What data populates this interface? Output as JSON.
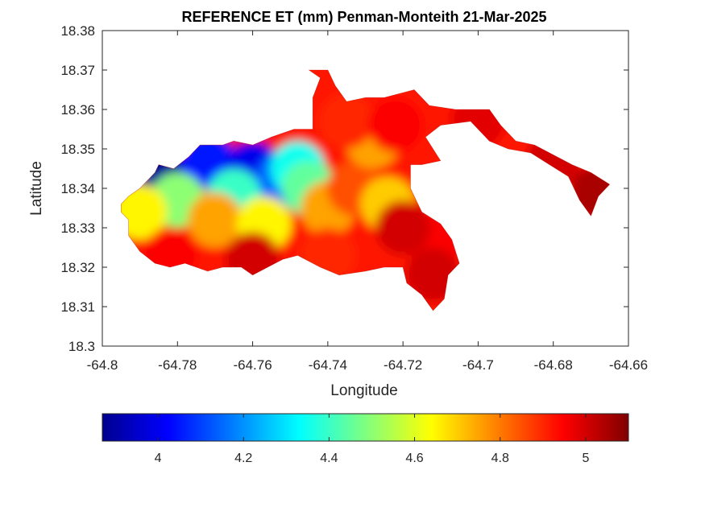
{
  "title": "REFERENCE ET (mm) Penman-Monteith 21-Mar-2025",
  "xlabel": "Longitude",
  "ylabel": "Latitude",
  "x_ticks": [
    "-64.8",
    "-64.78",
    "-64.76",
    "-64.74",
    "-64.72",
    "-64.7",
    "-64.68",
    "-64.66"
  ],
  "y_ticks": [
    "18.3",
    "18.31",
    "18.32",
    "18.33",
    "18.34",
    "18.35",
    "18.36",
    "18.37",
    "18.38"
  ],
  "colorbar_ticks": [
    "4",
    "4.2",
    "4.4",
    "4.6",
    "4.8",
    "5"
  ],
  "chart_data": {
    "type": "heatmap",
    "title": "REFERENCE ET (mm) Penman-Monteith 21-Mar-2025",
    "xlabel": "Longitude",
    "ylabel": "Latitude",
    "xlim": [
      -64.8,
      -64.66
    ],
    "ylim": [
      18.3,
      18.38
    ],
    "colormap": "jet",
    "clim": [
      3.87,
      5.1
    ],
    "colorbar_location": "south",
    "grid": false,
    "island_outline": [
      [
        -64.795,
        18.336
      ],
      [
        -64.793,
        18.338
      ],
      [
        -64.79,
        18.34
      ],
      [
        -64.786,
        18.344
      ],
      [
        -64.785,
        18.346
      ],
      [
        -64.781,
        18.345
      ],
      [
        -64.777,
        18.348
      ],
      [
        -64.774,
        18.351
      ],
      [
        -64.768,
        18.351
      ],
      [
        -64.765,
        18.352
      ],
      [
        -64.76,
        18.351
      ],
      [
        -64.755,
        18.353
      ],
      [
        -64.749,
        18.355
      ],
      [
        -64.744,
        18.355
      ],
      [
        -64.744,
        18.363
      ],
      [
        -64.742,
        18.368
      ],
      [
        -64.745,
        18.37
      ],
      [
        -64.74,
        18.37
      ],
      [
        -64.738,
        18.366
      ],
      [
        -64.735,
        18.362
      ],
      [
        -64.73,
        18.363
      ],
      [
        -64.725,
        18.363
      ],
      [
        -64.717,
        18.365
      ],
      [
        -64.713,
        18.361
      ],
      [
        -64.706,
        18.36
      ],
      [
        -64.697,
        18.36
      ],
      [
        -64.694,
        18.356
      ],
      [
        -64.69,
        18.352
      ],
      [
        -64.685,
        18.351
      ],
      [
        -64.681,
        18.349
      ],
      [
        -64.675,
        18.346
      ],
      [
        -64.67,
        18.344
      ],
      [
        -64.665,
        18.341
      ],
      [
        -64.668,
        18.338
      ],
      [
        -64.67,
        18.333
      ],
      [
        -64.673,
        18.337
      ],
      [
        -64.676,
        18.343
      ],
      [
        -64.681,
        18.346
      ],
      [
        -64.686,
        18.349
      ],
      [
        -64.692,
        18.35
      ],
      [
        -64.697,
        18.352
      ],
      [
        -64.702,
        18.357
      ],
      [
        -64.71,
        18.356
      ],
      [
        -64.714,
        18.353
      ],
      [
        -64.71,
        18.347
      ],
      [
        -64.715,
        18.346
      ],
      [
        -64.718,
        18.346
      ],
      [
        -64.718,
        18.34
      ],
      [
        -64.715,
        18.334
      ],
      [
        -64.71,
        18.331
      ],
      [
        -64.707,
        18.327
      ],
      [
        -64.705,
        18.321
      ],
      [
        -64.708,
        18.318
      ],
      [
        -64.709,
        18.312
      ],
      [
        -64.712,
        18.309
      ],
      [
        -64.715,
        18.313
      ],
      [
        -64.719,
        18.316
      ],
      [
        -64.72,
        18.32
      ],
      [
        -64.725,
        18.32
      ],
      [
        -64.73,
        18.319
      ],
      [
        -64.737,
        18.318
      ],
      [
        -64.742,
        18.32
      ],
      [
        -64.748,
        18.323
      ],
      [
        -64.752,
        18.322
      ],
      [
        -64.756,
        18.32
      ],
      [
        -64.76,
        18.318
      ],
      [
        -64.763,
        18.32
      ],
      [
        -64.768,
        18.32
      ],
      [
        -64.772,
        18.319
      ],
      [
        -64.778,
        18.321
      ],
      [
        -64.782,
        18.32
      ],
      [
        -64.786,
        18.321
      ],
      [
        -64.79,
        18.324
      ],
      [
        -64.793,
        18.328
      ],
      [
        -64.793,
        18.332
      ],
      [
        -64.795,
        18.334
      ]
    ],
    "value_field_samples": [
      {
        "lon": -64.784,
        "lat": 18.343,
        "et": 3.9
      },
      {
        "lon": -64.772,
        "lat": 18.347,
        "et": 4.05
      },
      {
        "lon": -64.76,
        "lat": 18.345,
        "et": 4.0
      },
      {
        "lon": -64.752,
        "lat": 18.342,
        "et": 4.15
      },
      {
        "lon": -64.748,
        "lat": 18.345,
        "et": 4.35
      },
      {
        "lon": -64.745,
        "lat": 18.34,
        "et": 4.45
      },
      {
        "lon": -64.765,
        "lat": 18.338,
        "et": 4.4
      },
      {
        "lon": -64.78,
        "lat": 18.337,
        "et": 4.5
      },
      {
        "lon": -64.79,
        "lat": 18.334,
        "et": 4.65
      },
      {
        "lon": -64.77,
        "lat": 18.332,
        "et": 4.75
      },
      {
        "lon": -64.757,
        "lat": 18.331,
        "et": 4.65
      },
      {
        "lon": -64.74,
        "lat": 18.335,
        "et": 4.75
      },
      {
        "lon": -64.733,
        "lat": 18.34,
        "et": 4.85
      },
      {
        "lon": -64.728,
        "lat": 18.352,
        "et": 4.75
      },
      {
        "lon": -64.735,
        "lat": 18.357,
        "et": 4.9
      },
      {
        "lon": -64.722,
        "lat": 18.356,
        "et": 4.95
      },
      {
        "lon": -64.724,
        "lat": 18.336,
        "et": 4.7
      },
      {
        "lon": -64.712,
        "lat": 18.326,
        "et": 4.95
      },
      {
        "lon": -64.72,
        "lat": 18.33,
        "et": 5.0
      },
      {
        "lon": -64.74,
        "lat": 18.323,
        "et": 4.9
      },
      {
        "lon": -64.76,
        "lat": 18.322,
        "et": 5.0
      },
      {
        "lon": -64.782,
        "lat": 18.323,
        "et": 4.95
      },
      {
        "lon": -64.712,
        "lat": 18.318,
        "et": 5.0
      },
      {
        "lon": -64.7,
        "lat": 18.357,
        "et": 4.98
      },
      {
        "lon": -64.68,
        "lat": 18.347,
        "et": 5.0
      },
      {
        "lon": -64.668,
        "lat": 18.339,
        "et": 5.05
      }
    ]
  }
}
